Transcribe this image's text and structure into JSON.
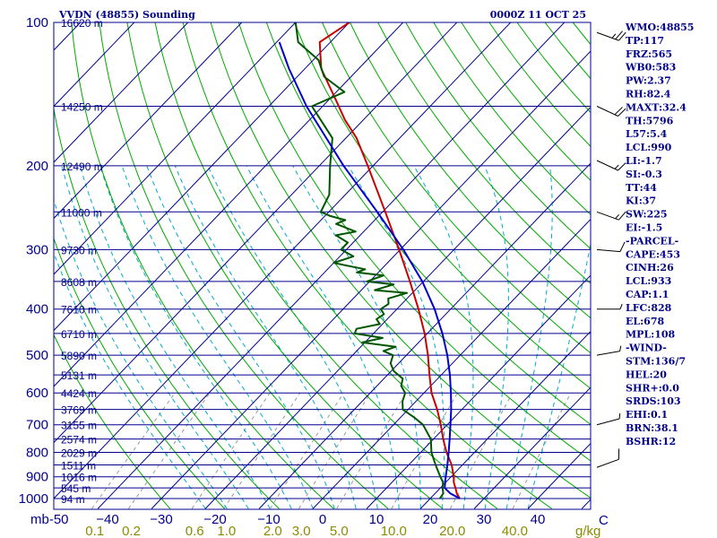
{
  "header": {
    "station": "VVDN (48855) Sounding",
    "time": "0000Z 11 OCT 25"
  },
  "colors": {
    "isobar": "#00008b",
    "isotherm": "#00008b",
    "dry_adiabat": "#00aa00",
    "moist_adiabat": "#00aacc",
    "mixing_ratio": "#999999",
    "temperature": "#cc0000",
    "dewpoint": "#005500",
    "parcel": "#0000cc",
    "wind_barb": "#000000"
  },
  "chart_data": {
    "type": "line",
    "title": "VVDN (48855) Sounding",
    "xlabel": "C",
    "ylabel": "mb",
    "xlim": [
      -50,
      50
    ],
    "ylim": [
      1000,
      100
    ],
    "y_scale": "log",
    "pressure_levels": [
      {
        "p": 100,
        "h": "16620 m"
      },
      {
        "p": 150,
        "h": "14250 m"
      },
      {
        "p": 200,
        "h": "12490 m"
      },
      {
        "p": 250,
        "h": "11000 m"
      },
      {
        "p": 300,
        "h": "9730 m"
      },
      {
        "p": 350,
        "h": "8608 m"
      },
      {
        "p": 400,
        "h": "7610 m"
      },
      {
        "p": 450,
        "h": "6710 m"
      },
      {
        "p": 500,
        "h": "5890 m"
      },
      {
        "p": 550,
        "h": "5131 m"
      },
      {
        "p": 600,
        "h": "4424 m"
      },
      {
        "p": 650,
        "h": "3769 m"
      },
      {
        "p": 700,
        "h": "3155 m"
      },
      {
        "p": 750,
        "h": "2574 m"
      },
      {
        "p": 800,
        "h": "2029 m"
      },
      {
        "p": 850,
        "h": "1511 m"
      },
      {
        "p": 900,
        "h": "1016 m"
      },
      {
        "p": 950,
        "h": "545 m"
      },
      {
        "p": 1000,
        "h": "94 m"
      }
    ],
    "p_tick_labels": [
      100,
      200,
      300,
      400,
      500,
      600,
      700,
      800,
      900,
      1000
    ],
    "t_tick_labels": [
      -50,
      -40,
      -30,
      -20,
      -10,
      0,
      10,
      20,
      30,
      40
    ],
    "t_tick_text": [
      "mb-50",
      "−40",
      "−30",
      "−20",
      "−10",
      "0",
      "10",
      "20",
      "30",
      "40"
    ],
    "mixing_ratio_labels": [
      "0.1",
      "0.2",
      "0.6",
      "1.0",
      "2.0",
      "3.0",
      "5.0",
      "10.0",
      "20.0",
      "40.0"
    ],
    "mixing_ratio_unit": "g/kg",
    "series": [
      {
        "name": "temperature",
        "points": [
          [
            1000,
            25.5
          ],
          [
            975,
            24.0
          ],
          [
            950,
            22.8
          ],
          [
            925,
            21.5
          ],
          [
            900,
            20.5
          ],
          [
            850,
            18.0
          ],
          [
            800,
            14.8
          ],
          [
            750,
            11.8
          ],
          [
            700,
            8.8
          ],
          [
            650,
            5.4
          ],
          [
            600,
            1.4
          ],
          [
            550,
            -2.2
          ],
          [
            500,
            -6.0
          ],
          [
            450,
            -10.5
          ],
          [
            400,
            -16.0
          ],
          [
            350,
            -22.5
          ],
          [
            300,
            -30.2
          ],
          [
            250,
            -39.5
          ],
          [
            200,
            -51.0
          ],
          [
            175,
            -58.0
          ],
          [
            160,
            -63.5
          ],
          [
            150,
            -67.0
          ],
          [
            125,
            -77.0
          ],
          [
            110,
            -82.0
          ],
          [
            100,
            -80.0
          ]
        ]
      },
      {
        "name": "dewpoint",
        "points": [
          [
            1000,
            21.8
          ],
          [
            975,
            21.5
          ],
          [
            950,
            20.4
          ],
          [
            925,
            19.5
          ],
          [
            900,
            18.0
          ],
          [
            850,
            15.0
          ],
          [
            800,
            12.0
          ],
          [
            750,
            9.5
          ],
          [
            700,
            5.5
          ],
          [
            675,
            2.5
          ],
          [
            650,
            -1.0
          ],
          [
            625,
            -2.5
          ],
          [
            600,
            -3.5
          ],
          [
            580,
            -5.5
          ],
          [
            560,
            -6.5
          ],
          [
            540,
            -9.5
          ],
          [
            520,
            -11.5
          ],
          [
            500,
            -12.5
          ],
          [
            490,
            -15.0
          ],
          [
            480,
            -13.5
          ],
          [
            470,
            -20.5
          ],
          [
            460,
            -17.5
          ],
          [
            450,
            -23.5
          ],
          [
            440,
            -24.0
          ],
          [
            430,
            -20.5
          ],
          [
            420,
            -22.0
          ],
          [
            410,
            -21.5
          ],
          [
            400,
            -23.0
          ],
          [
            390,
            -22.5
          ],
          [
            380,
            -23.5
          ],
          [
            370,
            -21.0
          ],
          [
            365,
            -27.5
          ],
          [
            355,
            -25.0
          ],
          [
            350,
            -30.5
          ],
          [
            340,
            -28.5
          ],
          [
            335,
            -34.0
          ],
          [
            330,
            -33.0
          ],
          [
            320,
            -40.0
          ],
          [
            310,
            -37.5
          ],
          [
            300,
            -41.0
          ],
          [
            290,
            -41.0
          ],
          [
            280,
            -44.5
          ],
          [
            275,
            -41.5
          ],
          [
            265,
            -46.5
          ],
          [
            260,
            -45.5
          ],
          [
            255,
            -49.0
          ],
          [
            250,
            -51.5
          ],
          [
            230,
            -53.0
          ],
          [
            200,
            -58.0
          ],
          [
            175,
            -62.5
          ],
          [
            150,
            -72.0
          ],
          [
            140,
            -68.5
          ],
          [
            130,
            -75.0
          ],
          [
            120,
            -79.0
          ],
          [
            110,
            -86.0
          ],
          [
            100,
            -90.0
          ]
        ]
      },
      {
        "name": "parcel",
        "points": [
          [
            1000,
            25.5
          ],
          [
            975,
            22.8
          ],
          [
            950,
            20.8
          ],
          [
            925,
            19.9
          ],
          [
            900,
            19.0
          ],
          [
            850,
            17.2
          ],
          [
            800,
            15.2
          ],
          [
            750,
            13.0
          ],
          [
            700,
            10.6
          ],
          [
            650,
            8.0
          ],
          [
            600,
            5.0
          ],
          [
            550,
            1.6
          ],
          [
            500,
            -2.4
          ],
          [
            450,
            -7.2
          ],
          [
            400,
            -13.0
          ],
          [
            350,
            -20.2
          ],
          [
            300,
            -29.4
          ],
          [
            250,
            -41.0
          ],
          [
            200,
            -55.5
          ],
          [
            150,
            -73.0
          ],
          [
            125,
            -83.0
          ],
          [
            110,
            -89.5
          ]
        ]
      }
    ],
    "wind_barbs": [
      {
        "p": 105,
        "dir": 110,
        "kt": 25
      },
      {
        "p": 150,
        "dir": 115,
        "kt": 20
      },
      {
        "p": 195,
        "dir": 115,
        "kt": 15
      },
      {
        "p": 250,
        "dir": 110,
        "kt": 15
      },
      {
        "p": 300,
        "dir": 95,
        "kt": 10
      },
      {
        "p": 400,
        "dir": 90,
        "kt": 5
      },
      {
        "p": 500,
        "dir": 80,
        "kt": 5
      },
      {
        "p": 700,
        "dir": 75,
        "kt": 5
      },
      {
        "p": 860,
        "dir": 70,
        "kt": 10
      }
    ]
  },
  "indices": [
    "WMO:48855",
    "TP:117",
    "FRZ:565",
    "WB0:583",
    "PW:2.37",
    "RH:82.4",
    "MAXT:32.4",
    "TH:5796",
    "L57:5.4",
    "LCL:990",
    "LI:-1.7",
    "SI:-0.3",
    "TT:44",
    "KI:37",
    "SW:225",
    "EI:-1.5",
    "-PARCEL-",
    "CAPE:453",
    "CINH:26",
    "LCL:933",
    "CAP:1.1",
    "LFC:828",
    "EL:678",
    "MPL:108",
    "-WIND-",
    "STM:136/7",
    "HEL:20",
    "SHR+:0.0",
    "SRDS:103",
    "EHI:0.1",
    "BRN:38.1",
    "BSHR:12"
  ]
}
